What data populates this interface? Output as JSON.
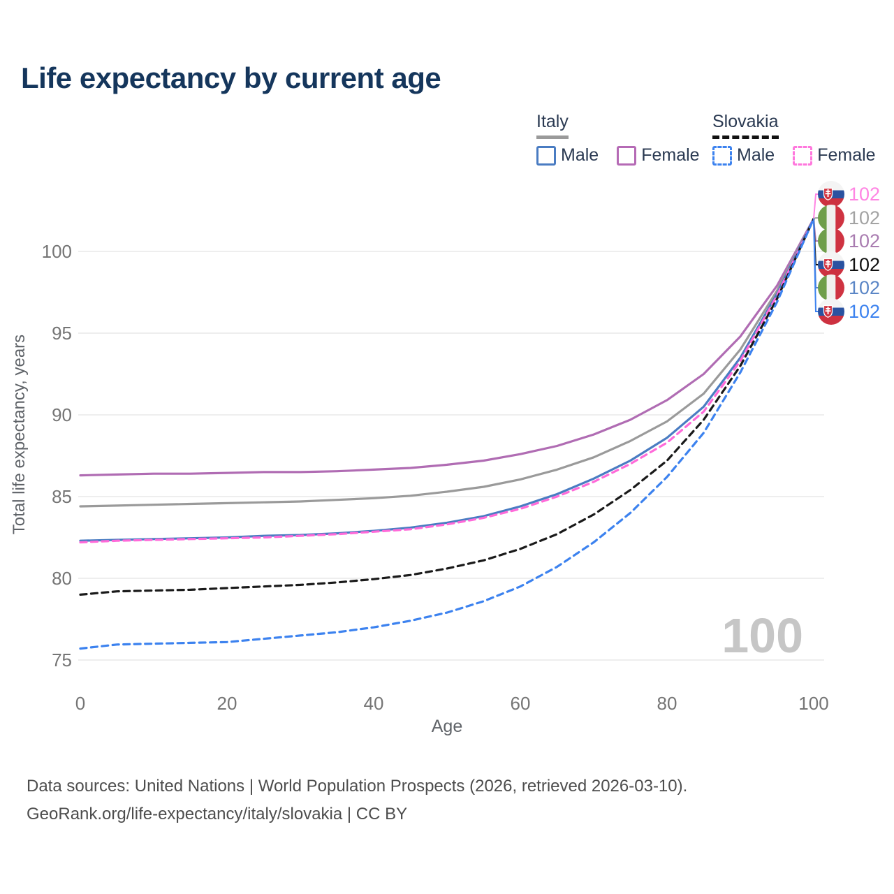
{
  "title": "Life expectancy by current age",
  "legend": {
    "groups": [
      {
        "country": "Italy",
        "line_style": "solid",
        "swatch_color": "#9a9a9a",
        "items": [
          {
            "label": "Male",
            "color": "#4a7cc2",
            "style": "solid"
          },
          {
            "label": "Female",
            "color": "#b56ab5",
            "style": "solid"
          }
        ]
      },
      {
        "country": "Slovakia",
        "line_style": "dashed",
        "swatch_color": "#111111",
        "items": [
          {
            "label": "Male",
            "color": "#3c82ef",
            "style": "dashed"
          },
          {
            "label": "Female",
            "color": "#ff77dd",
            "style": "dashed"
          }
        ]
      }
    ]
  },
  "axes": {
    "x_label": "Age",
    "y_label": "Total life expectancy, years"
  },
  "watermark": "100",
  "colors": {
    "grid": "#e8e8e8",
    "tick": "#757575",
    "title": "#15365c",
    "footer": "#4d4d4d",
    "watermark": "#c6c6c6"
  },
  "chart_data": {
    "type": "line",
    "title": "Life expectancy by current age",
    "xlabel": "Age",
    "ylabel": "Total life expectancy, years",
    "xlim": [
      0,
      100
    ],
    "ylim": [
      75,
      102
    ],
    "x_ticks": [
      0,
      20,
      40,
      60,
      80,
      100
    ],
    "y_ticks": [
      75,
      80,
      85,
      90,
      95,
      100
    ],
    "grid": "horizontal-only",
    "legend_position": "top-right",
    "x": [
      0,
      5,
      10,
      15,
      20,
      25,
      30,
      35,
      40,
      45,
      50,
      55,
      60,
      65,
      70,
      75,
      80,
      85,
      90,
      95,
      100
    ],
    "series": [
      {
        "id": "italy-female",
        "name": "Italy Female",
        "country": "Italy",
        "sex": "Female",
        "style": "solid",
        "color": "#b06cb3",
        "values": [
          86.3,
          86.35,
          86.4,
          86.4,
          86.45,
          86.5,
          86.5,
          86.55,
          86.65,
          86.75,
          86.95,
          87.2,
          87.6,
          88.1,
          88.8,
          89.7,
          90.9,
          92.5,
          94.8,
          97.9,
          102
        ]
      },
      {
        "id": "italy-total",
        "name": "Italy",
        "country": "Italy",
        "sex": "Both",
        "style": "solid",
        "color": "#9a9a9a",
        "values": [
          84.4,
          84.45,
          84.5,
          84.55,
          84.6,
          84.65,
          84.7,
          84.8,
          84.9,
          85.05,
          85.3,
          85.6,
          86.05,
          86.65,
          87.4,
          88.4,
          89.6,
          91.3,
          94.0,
          97.6,
          102
        ]
      },
      {
        "id": "italy-male",
        "name": "Italy Male",
        "country": "Italy",
        "sex": "Male",
        "style": "solid",
        "color": "#4a7cc2",
        "values": [
          82.3,
          82.35,
          82.4,
          82.45,
          82.5,
          82.6,
          82.65,
          82.75,
          82.9,
          83.1,
          83.4,
          83.8,
          84.4,
          85.15,
          86.1,
          87.2,
          88.6,
          90.5,
          93.5,
          97.4,
          102
        ]
      },
      {
        "id": "slovakia-female",
        "name": "Slovakia Female",
        "country": "Slovakia",
        "sex": "Female",
        "style": "dashed",
        "color": "#ff6ad9",
        "values": [
          82.2,
          82.3,
          82.35,
          82.4,
          82.45,
          82.5,
          82.6,
          82.7,
          82.85,
          83.0,
          83.3,
          83.7,
          84.25,
          85.0,
          85.9,
          87.0,
          88.3,
          90.2,
          93.3,
          97.3,
          102
        ]
      },
      {
        "id": "slovakia-total",
        "name": "Slovakia",
        "country": "Slovakia",
        "sex": "Both",
        "style": "dashed",
        "color": "#1a1a1a",
        "values": [
          79.0,
          79.2,
          79.25,
          79.3,
          79.4,
          79.5,
          79.6,
          79.75,
          79.95,
          80.2,
          80.6,
          81.1,
          81.8,
          82.7,
          83.9,
          85.4,
          87.2,
          89.7,
          93.0,
          97.1,
          102
        ]
      },
      {
        "id": "slovakia-male",
        "name": "Slovakia Male",
        "country": "Slovakia",
        "sex": "Male",
        "style": "dashed",
        "color": "#3c82ef",
        "values": [
          75.7,
          75.95,
          76.0,
          76.05,
          76.1,
          76.3,
          76.5,
          76.7,
          77.0,
          77.4,
          77.9,
          78.6,
          79.5,
          80.7,
          82.2,
          84.0,
          86.2,
          88.9,
          92.6,
          96.9,
          102
        ]
      }
    ]
  },
  "end_labels": [
    {
      "flag": "slovakia",
      "series": "Slovakia Female",
      "value": "102",
      "color": "#ff85e3"
    },
    {
      "flag": "italy",
      "series": "Italy",
      "value": "102",
      "color": "#a3a3a3"
    },
    {
      "flag": "italy",
      "series": "Italy Female",
      "value": "102",
      "color": "#a97cb0"
    },
    {
      "flag": "slovakia",
      "series": "Slovakia",
      "value": "102",
      "color": "#111111"
    },
    {
      "flag": "italy",
      "series": "Italy Male",
      "value": "102",
      "color": "#5b86c6"
    },
    {
      "flag": "slovakia",
      "series": "Slovakia Male",
      "value": "102",
      "color": "#3c82ef"
    }
  ],
  "footer": {
    "line1": "Data sources: United Nations | World Population Prospects (2026, retrieved 2026-03-10).",
    "line2": "GeoRank.org/life-expectancy/italy/slovakia | CC BY"
  }
}
